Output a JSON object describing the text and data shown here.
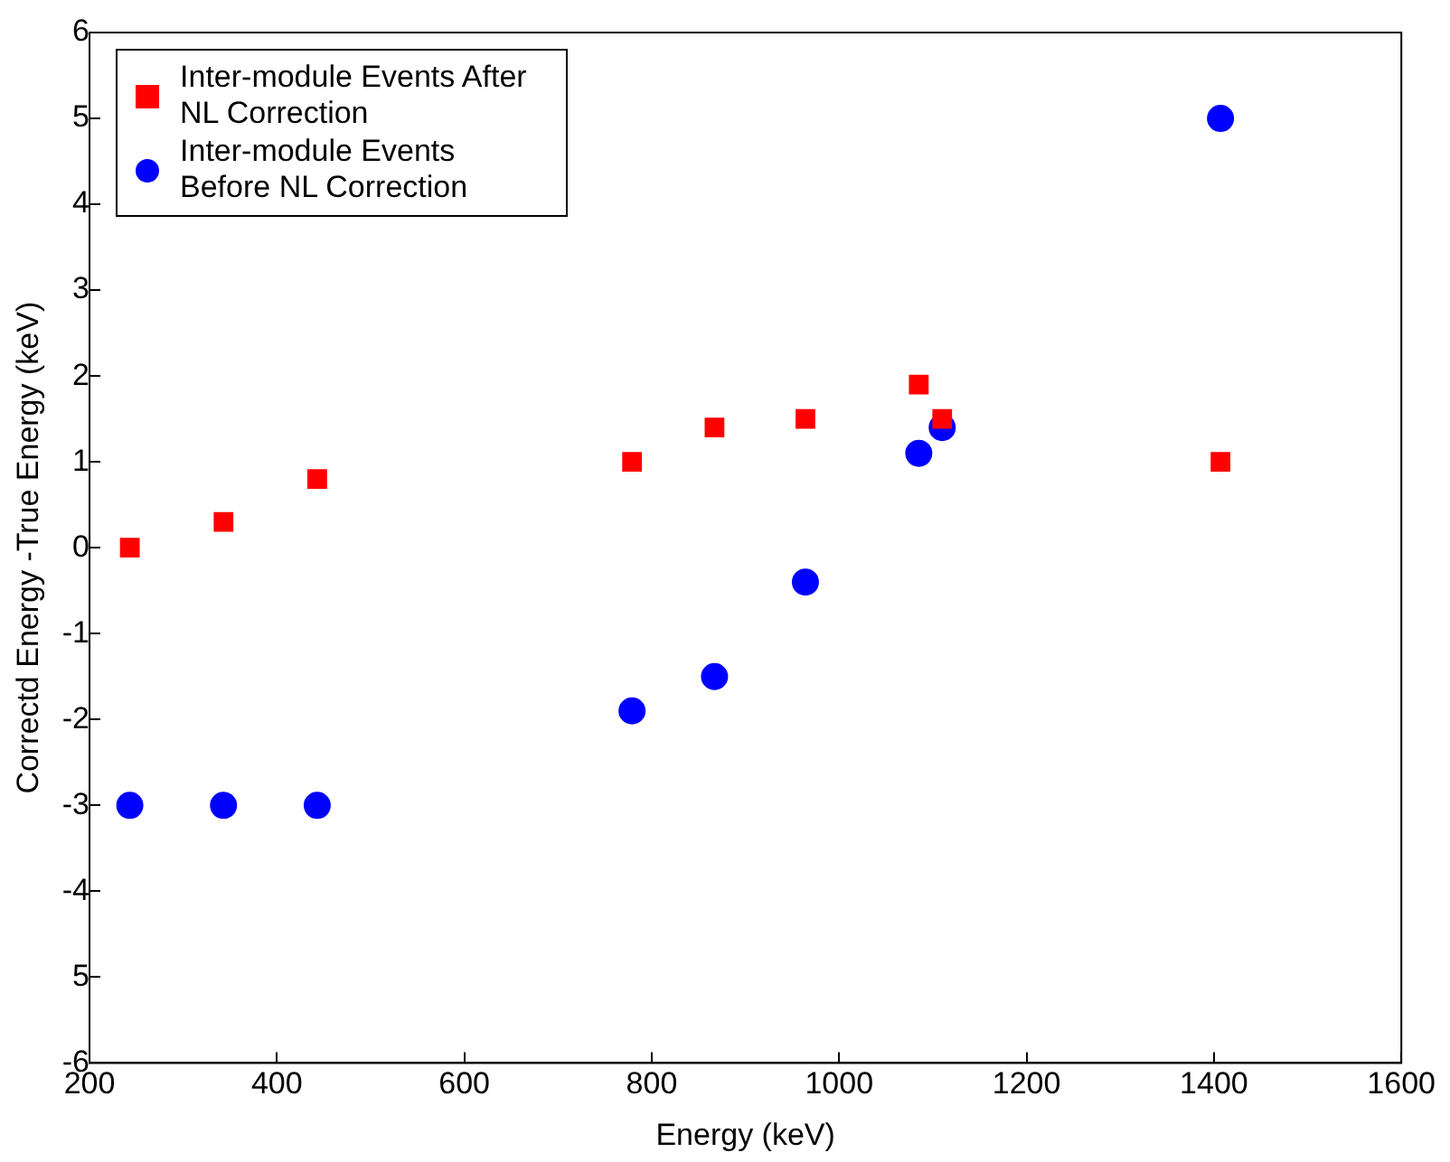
{
  "chart_data": {
    "type": "scatter",
    "xlabel": "Energy (keV)",
    "ylabel": "Correctd Energy -True Energy (keV)",
    "xlim": [
      200,
      1600
    ],
    "xticks": [
      200,
      400,
      600,
      800,
      1000,
      1200,
      1400,
      1600
    ],
    "ylim": [
      -6,
      6
    ],
    "yticks": [
      -6,
      {
        "value": -5,
        "label": "5"
      },
      -4,
      -3,
      -2,
      -1,
      0,
      1,
      2,
      3,
      4,
      5,
      6
    ],
    "legend": "top left",
    "grid": false,
    "series": [
      {
        "name": "Inter-module Events After NL Correction",
        "color": "#ff0000",
        "marker": "square",
        "x": [
          243,
          343,
          443,
          779,
          867,
          964,
          1085,
          1110,
          1407
        ],
        "values": [
          0,
          0.3,
          0.8,
          1,
          1.4,
          1.5,
          1.9,
          1.5,
          1
        ]
      },
      {
        "name": "Inter-module Events Before NL Correction",
        "color": "#0000ff",
        "marker": "circle",
        "x": [
          243,
          343,
          443,
          779,
          867,
          964,
          1085,
          1110,
          1407
        ],
        "values": [
          -3,
          -3,
          -3,
          -1.9,
          -1.5,
          -0.4,
          1.1,
          1.4,
          5
        ]
      }
    ]
  }
}
